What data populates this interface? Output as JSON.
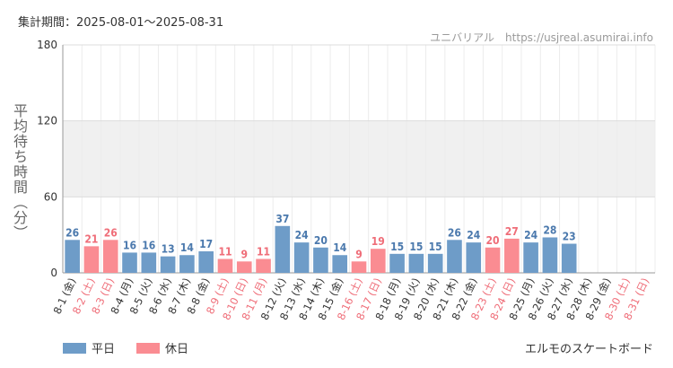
{
  "header": {
    "period_label": "集計期間：2025-08-01〜2025-08-31",
    "site_label": "ユニバリアル　https://usjreal.asumirai.info"
  },
  "footer": {
    "attraction_name": "エルモのスケートボード"
  },
  "colors": {
    "weekday": "#6e9cc8",
    "holiday": "#fa8c92",
    "weekday_text": "#4b79ad",
    "holiday_text": "#ef6d78",
    "band": "#f0f0f0"
  },
  "chart_data": {
    "type": "bar",
    "title": "",
    "xlabel": "",
    "ylabel": "平均待ち時間（分）",
    "ylim": [
      0,
      180
    ],
    "yticks": [
      0,
      60,
      120,
      180
    ],
    "grid": true,
    "legend_position": "bottom-left",
    "legend": [
      {
        "name": "平日",
        "color": "#6e9cc8"
      },
      {
        "name": "休日",
        "color": "#fa8c92"
      }
    ],
    "categories": [
      "8-1 (金)",
      "8-2 (土)",
      "8-3 (日)",
      "8-4 (月)",
      "8-5 (火)",
      "8-6 (水)",
      "8-7 (木)",
      "8-8 (金)",
      "8-9 (土)",
      "8-10 (日)",
      "8-11 (月)",
      "8-12 (火)",
      "8-13 (水)",
      "8-14 (木)",
      "8-15 (金)",
      "8-16 (土)",
      "8-17 (日)",
      "8-18 (月)",
      "8-19 (火)",
      "8-20 (水)",
      "8-21 (木)",
      "8-22 (金)",
      "8-23 (土)",
      "8-24 (日)",
      "8-25 (月)",
      "8-26 (火)",
      "8-27 (水)",
      "8-28 (木)",
      "8-29 (金)",
      "8-30 (土)",
      "8-31 (日)"
    ],
    "values": [
      26,
      21,
      26,
      16,
      16,
      13,
      14,
      17,
      11,
      9,
      11,
      37,
      24,
      20,
      14,
      9,
      19,
      15,
      15,
      15,
      26,
      24,
      20,
      27,
      24,
      28,
      23,
      null,
      null,
      null,
      null
    ],
    "day_type": [
      "weekday",
      "holiday",
      "holiday",
      "weekday",
      "weekday",
      "weekday",
      "weekday",
      "weekday",
      "holiday",
      "holiday",
      "holiday",
      "weekday",
      "weekday",
      "weekday",
      "weekday",
      "holiday",
      "holiday",
      "weekday",
      "weekday",
      "weekday",
      "weekday",
      "weekday",
      "holiday",
      "holiday",
      "weekday",
      "weekday",
      "weekday",
      "weekday",
      "weekday",
      "holiday",
      "holiday"
    ]
  }
}
